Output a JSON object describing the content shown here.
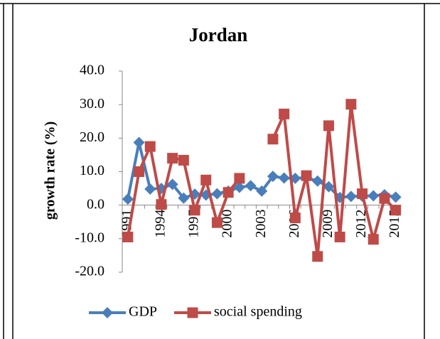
{
  "chart_data": {
    "type": "line",
    "title": "Jordan",
    "y_label": "growth rate (%)",
    "categories": [
      "1991",
      null,
      null,
      "1994",
      null,
      null,
      "1997",
      null,
      null,
      "2000",
      null,
      null,
      "2003",
      null,
      null,
      "2006",
      null,
      null,
      "2009",
      null,
      null,
      "2012",
      null,
      null,
      "2015"
    ],
    "series": [
      {
        "name": "GDP",
        "color": "#4a7ebb",
        "marker": "diamond",
        "values": [
          1.8,
          18.7,
          4.8,
          5.0,
          6.2,
          2.1,
          3.3,
          3.0,
          3.4,
          4.2,
          5.3,
          5.8,
          4.2,
          8.6,
          8.1,
          8.0,
          8.2,
          7.2,
          5.5,
          2.3,
          2.6,
          2.7,
          2.8,
          3.1,
          2.4
        ]
      },
      {
        "name": "social spending",
        "color": "#be4b48",
        "marker": "square",
        "values": [
          -9.5,
          10.0,
          17.5,
          0.2,
          14.0,
          13.4,
          -1.5,
          7.5,
          -5.2,
          3.8,
          8.0,
          null,
          null,
          19.7,
          27.2,
          -3.8,
          8.8,
          -15.3,
          23.7,
          -9.5,
          30.1,
          3.4,
          -10.2,
          2.0,
          -1.5
        ]
      }
    ],
    "ylim": [
      -20,
      40
    ],
    "yticks": [
      {
        "value": -20,
        "label": "-20.0"
      },
      {
        "value": -10,
        "label": "-10.0"
      },
      {
        "value": 0,
        "label": "0.0"
      },
      {
        "value": 10,
        "label": "10.0"
      },
      {
        "value": 20,
        "label": "20.0"
      },
      {
        "value": 30,
        "label": "30.0"
      },
      {
        "value": 40,
        "label": "40.0"
      }
    ],
    "grid": false,
    "legend": "bottom"
  }
}
